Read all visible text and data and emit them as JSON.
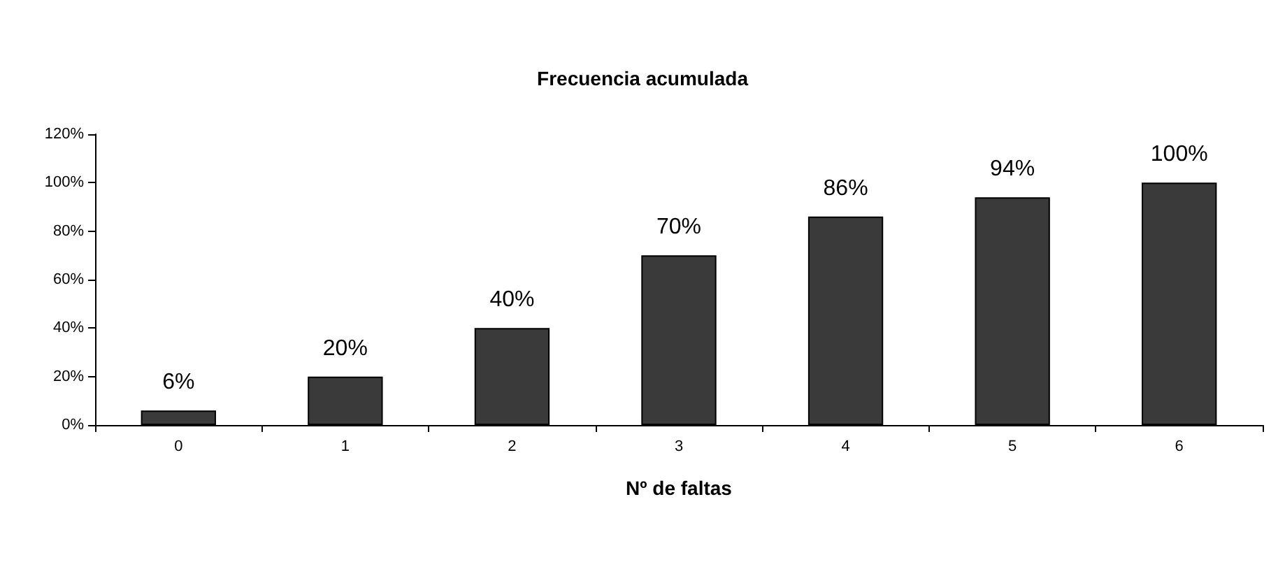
{
  "chart_data": {
    "type": "bar",
    "title": "Frecuencia acumulada",
    "xlabel": "Nº de faltas",
    "categories": [
      "0",
      "1",
      "2",
      "3",
      "4",
      "5",
      "6"
    ],
    "values": [
      6,
      20,
      40,
      70,
      86,
      94,
      100
    ],
    "value_labels": [
      "6%",
      "20%",
      "40%",
      "70%",
      "86%",
      "94%",
      "100%"
    ],
    "color": "#3a3a3a",
    "ylim": [
      0,
      120
    ],
    "yticks": [
      {
        "value": 0,
        "label": "0%"
      },
      {
        "value": 20,
        "label": "20%"
      },
      {
        "value": 40,
        "label": "40%"
      },
      {
        "value": 60,
        "label": "60%"
      },
      {
        "value": 80,
        "label": "80%"
      },
      {
        "value": 100,
        "label": "100%"
      },
      {
        "value": 120,
        "label": "120%"
      }
    ],
    "grid": false
  }
}
